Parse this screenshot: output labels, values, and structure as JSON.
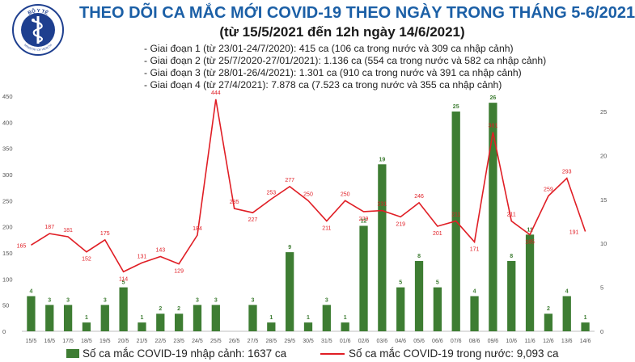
{
  "header": {
    "title": "THEO DÕI CA MẮC MỚI COVID-19 THEO NGÀY TRONG THÁNG 5-6/2021",
    "subtitle": "(từ 15/5/2021 đến 12h ngày 14/6/2021)",
    "logo_top_text": "BỘ Y TẾ",
    "logo_bottom_text": "MINISTRY OF HEALTH"
  },
  "phases": [
    "- Giai đoạn 1 (từ 23/01-24/7/2020): 415 ca (106 ca trong nước và 309 ca nhập cảnh)",
    "- Giai đoạn 2 (từ 25/7/2020-27/01/2021): 1.136 ca (554 ca trong nước và 582 ca nhập cảnh)",
    "- Giai đoạn 3 (từ 28/01-26/4/2021): 1.301 ca (910 ca trong nước và 391 ca nhập cảnh)",
    "- Giai đoạn 4 (từ 27/4/2021): 7.878 ca (7.523 ca trong nước và 355 ca nhập cảnh)"
  ],
  "legend": {
    "bars_label": "Số ca mắc COVID-19 nhập cảnh: 1637 ca",
    "line_label": "Số ca mắc COVID-19 trong nước: 9,093 ca"
  },
  "colors": {
    "bar": "#3e7d33",
    "bar_label": "#3e7d33",
    "line": "#e01e25",
    "line_label": "#e01e25",
    "title": "#1b5fa6",
    "logo": "#1e3f8f"
  },
  "chart_data": {
    "type": "bar+line",
    "categories": [
      "15/5",
      "16/5",
      "17/5",
      "18/5",
      "19/5",
      "20/5",
      "21/5",
      "22/5",
      "23/5",
      "24/5",
      "25/5",
      "26/5",
      "27/5",
      "28/5",
      "29/5",
      "30/5",
      "31/5",
      "01/6",
      "02/6",
      "03/6",
      "04/6",
      "05/6",
      "06/6",
      "07/6",
      "08/6",
      "09/6",
      "10/6",
      "11/6",
      "12/6",
      "13/6",
      "14/6"
    ],
    "series": [
      {
        "name": "Số ca mắc COVID-19 nhập cảnh: 1637 ca",
        "type": "bar",
        "axis": "right",
        "values": [
          4,
          3,
          3,
          1,
          3,
          5,
          1,
          2,
          2,
          3,
          3,
          0,
          3,
          1,
          9,
          1,
          3,
          1,
          12,
          19,
          5,
          8,
          5,
          25,
          4,
          26,
          8,
          11,
          2,
          4,
          1
        ],
        "labels": [
          "4",
          "3",
          "3",
          "1",
          "3",
          "5",
          "1",
          "2",
          "2",
          "3",
          "3",
          "",
          "3",
          "1",
          "9",
          "1",
          "3",
          "1",
          "12",
          "19",
          "5",
          "8",
          "5",
          "25",
          "4",
          "26",
          "8",
          "11",
          "2",
          "4",
          "1"
        ]
      },
      {
        "name": "Số ca mắc COVID-19 trong nước: 9,093 ca",
        "type": "line",
        "axis": "left",
        "values": [
          165,
          187,
          181,
          152,
          175,
          114,
          131,
          143,
          129,
          184,
          444,
          235,
          227,
          253,
          277,
          250,
          211,
          250,
          229,
          231,
          219,
          246,
          201,
          211,
          171,
          381,
          211,
          185,
          259,
          293,
          191
        ],
        "labels": [
          "165",
          "187",
          "181",
          "152",
          "175",
          "114",
          "131",
          "143",
          "129",
          "184",
          "444",
          "235",
          "227",
          "253",
          "277",
          "250",
          "211",
          "250",
          "229",
          "231",
          "219",
          "246",
          "201",
          "211",
          "171",
          "381",
          "211",
          "185",
          "259",
          "293",
          "191"
        ]
      }
    ],
    "y_left": {
      "min": 0,
      "max": 450,
      "ticks": [
        "0",
        "50",
        "100",
        "150",
        "200",
        "250",
        "300",
        "350",
        "400",
        "450"
      ]
    },
    "y_right": {
      "min": 0,
      "max": 26.75,
      "ticks": [
        "0",
        "5",
        "10",
        "15",
        "20",
        "25"
      ]
    },
    "grid": false,
    "legend_position": "bottom"
  }
}
